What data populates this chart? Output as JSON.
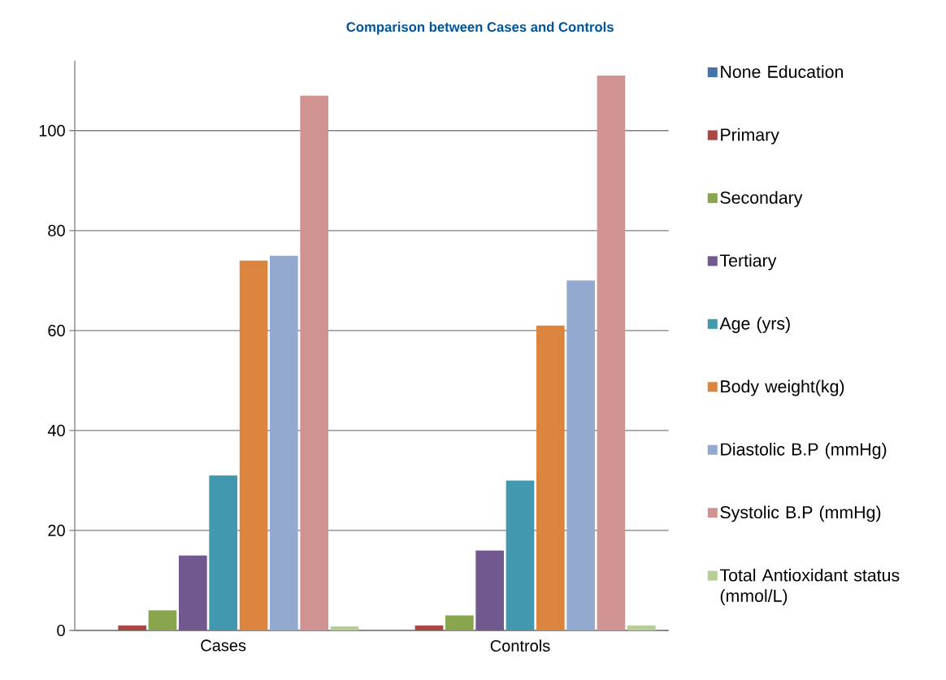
{
  "chart_data": {
    "type": "bar",
    "title": "Comparison between Cases and Controls",
    "categories": [
      "Cases",
      "Controls"
    ],
    "series": [
      {
        "name": "None Education",
        "color": "#4674ab",
        "values": [
          0,
          0
        ]
      },
      {
        "name": "Primary",
        "color": "#aa4643",
        "values": [
          1,
          1
        ]
      },
      {
        "name": "Secondary",
        "color": "#89a54e",
        "values": [
          4,
          3
        ]
      },
      {
        "name": "Tertiary",
        "color": "#71588f",
        "values": [
          15,
          16
        ]
      },
      {
        "name": "Age (yrs)",
        "color": "#4198af",
        "values": [
          31,
          30
        ]
      },
      {
        "name": "Body weight(kg)",
        "color": "#db843d",
        "values": [
          74,
          61
        ]
      },
      {
        "name": "Diastolic B.P (mmHg)",
        "color": "#93a9cf",
        "values": [
          75,
          70
        ]
      },
      {
        "name": "Systolic B.P (mmHg)",
        "color": "#d19392",
        "values": [
          107,
          111
        ]
      },
      {
        "name": "Total Antioxidant status (mmol/L)",
        "color": "#b9cd96",
        "values": [
          0.8,
          1
        ]
      }
    ],
    "ylim": [
      0,
      114
    ],
    "yticks": [
      0,
      20,
      40,
      60,
      80,
      100
    ],
    "grid": "y",
    "legend": "right"
  }
}
